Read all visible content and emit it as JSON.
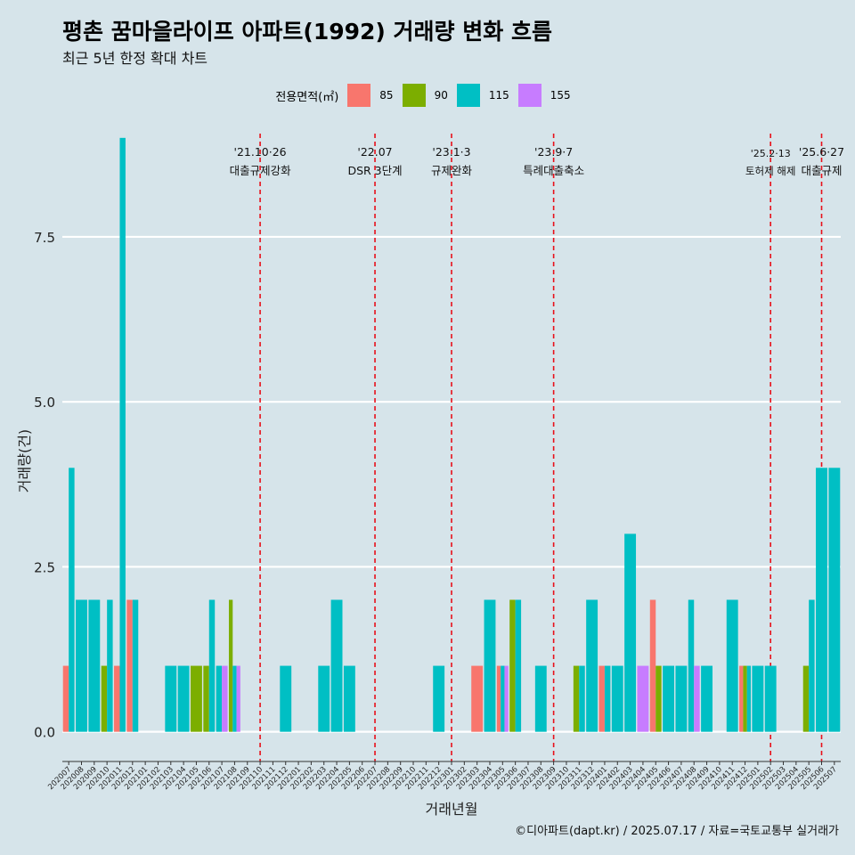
{
  "title": "평촌 꿈마을라이프 아파트(1992) 거래량 변화 흐름",
  "subtitle": "최근 5년 한정 확대 차트",
  "caption": "©디아파트(dapt.kr) / 2025.07.17 / 자료=국토교통부 실거래가",
  "legend": {
    "title": "전용면적(㎡)",
    "items": [
      {
        "label": "85",
        "color": "#F8766D"
      },
      {
        "label": "90",
        "color": "#7CAE00"
      },
      {
        "label": "115",
        "color": "#00BFC4"
      },
      {
        "label": "155",
        "color": "#C77CFF"
      }
    ]
  },
  "chart_data": {
    "type": "bar",
    "stacking": "dodge",
    "xlabel": "거래년월",
    "ylabel": "거래량(건)",
    "ylim": [
      -0.45,
      9.2
    ],
    "yticks": [
      0.0,
      2.5,
      5.0,
      7.5
    ],
    "grid": true,
    "series_names": [
      "85",
      "90",
      "115",
      "155"
    ],
    "categories": [
      "202007",
      "202008",
      "202009",
      "202010",
      "202011",
      "202012",
      "202101",
      "202102",
      "202103",
      "202104",
      "202105",
      "202106",
      "202107",
      "202108",
      "202109",
      "202110",
      "202111",
      "202112",
      "202201",
      "202202",
      "202203",
      "202204",
      "202205",
      "202206",
      "202207",
      "202208",
      "202209",
      "202210",
      "202211",
      "202212",
      "202301",
      "202302",
      "202303",
      "202304",
      "202305",
      "202306",
      "202307",
      "202308",
      "202309",
      "202310",
      "202311",
      "202312",
      "202401",
      "202402",
      "202403",
      "202404",
      "202405",
      "202406",
      "202407",
      "202408",
      "202409",
      "202410",
      "202411",
      "202412",
      "202501",
      "202502",
      "202503",
      "202504",
      "202505",
      "202506",
      "202507"
    ],
    "month_data": [
      {
        "m": "202007",
        "v": {
          "85": 1,
          "115": 4
        }
      },
      {
        "m": "202008",
        "v": {
          "115": 2
        }
      },
      {
        "m": "202009",
        "v": {
          "115": 2
        }
      },
      {
        "m": "202010",
        "v": {
          "90": 1,
          "115": 2
        }
      },
      {
        "m": "202011",
        "v": {
          "85": 1,
          "115": 9
        }
      },
      {
        "m": "202012",
        "v": {
          "85": 2,
          "115": 2
        }
      },
      {
        "m": "202103",
        "v": {
          "115": 1
        }
      },
      {
        "m": "202104",
        "v": {
          "115": 1
        }
      },
      {
        "m": "202105",
        "v": {
          "90": 1
        }
      },
      {
        "m": "202106",
        "v": {
          "90": 1,
          "115": 2
        }
      },
      {
        "m": "202107",
        "v": {
          "115": 1,
          "155": 1
        }
      },
      {
        "m": "202108",
        "v": {
          "90": 2,
          "115": 1,
          "155": 1
        }
      },
      {
        "m": "202112",
        "v": {
          "115": 1
        }
      },
      {
        "m": "202203",
        "v": {
          "115": 1
        }
      },
      {
        "m": "202204",
        "v": {
          "115": 2
        }
      },
      {
        "m": "202205",
        "v": {
          "115": 1
        }
      },
      {
        "m": "202212",
        "v": {
          "115": 1
        }
      },
      {
        "m": "202303",
        "v": {
          "85": 1
        }
      },
      {
        "m": "202304",
        "v": {
          "115": 2
        }
      },
      {
        "m": "202305",
        "v": {
          "85": 1,
          "115": 1,
          "155": 1
        }
      },
      {
        "m": "202306",
        "v": {
          "90": 2,
          "115": 2
        }
      },
      {
        "m": "202308",
        "v": {
          "115": 1
        }
      },
      {
        "m": "202311",
        "v": {
          "90": 1,
          "115": 1
        }
      },
      {
        "m": "202312",
        "v": {
          "115": 2
        }
      },
      {
        "m": "202401",
        "v": {
          "85": 1,
          "115": 1
        }
      },
      {
        "m": "202402",
        "v": {
          "115": 1
        }
      },
      {
        "m": "202403",
        "v": {
          "115": 3
        }
      },
      {
        "m": "202404",
        "v": {
          "155": 1
        }
      },
      {
        "m": "202405",
        "v": {
          "85": 2,
          "90": 1
        }
      },
      {
        "m": "202406",
        "v": {
          "115": 1
        }
      },
      {
        "m": "202407",
        "v": {
          "115": 1
        }
      },
      {
        "m": "202408",
        "v": {
          "115": 2,
          "155": 1
        }
      },
      {
        "m": "202409",
        "v": {
          "115": 1
        }
      },
      {
        "m": "202411",
        "v": {
          "115": 2
        }
      },
      {
        "m": "202412",
        "v": {
          "85": 1,
          "90": 1,
          "115": 1
        }
      },
      {
        "m": "202501",
        "v": {
          "115": 1
        }
      },
      {
        "m": "202502",
        "v": {
          "115": 1
        }
      },
      {
        "m": "202505",
        "v": {
          "90": 1,
          "115": 2
        }
      },
      {
        "m": "202506",
        "v": {
          "115": 4
        }
      },
      {
        "m": "202507",
        "v": {
          "115": 4
        }
      }
    ],
    "events": [
      {
        "month": "202110",
        "date": "'21.10·26",
        "label": "대출규제강화"
      },
      {
        "month": "202207",
        "date": "'22.07",
        "label": "DSR 3단계"
      },
      {
        "month": "202301",
        "date": "'23.1·3",
        "label": "규제완화"
      },
      {
        "month": "202309",
        "date": "'23.9·7",
        "label": "특례대출축소"
      },
      {
        "month": "202502",
        "date": "'25.2·13",
        "label": "토허제 해제"
      },
      {
        "month": "202506",
        "date": "'25.6·27",
        "label": "대출규제"
      }
    ]
  }
}
